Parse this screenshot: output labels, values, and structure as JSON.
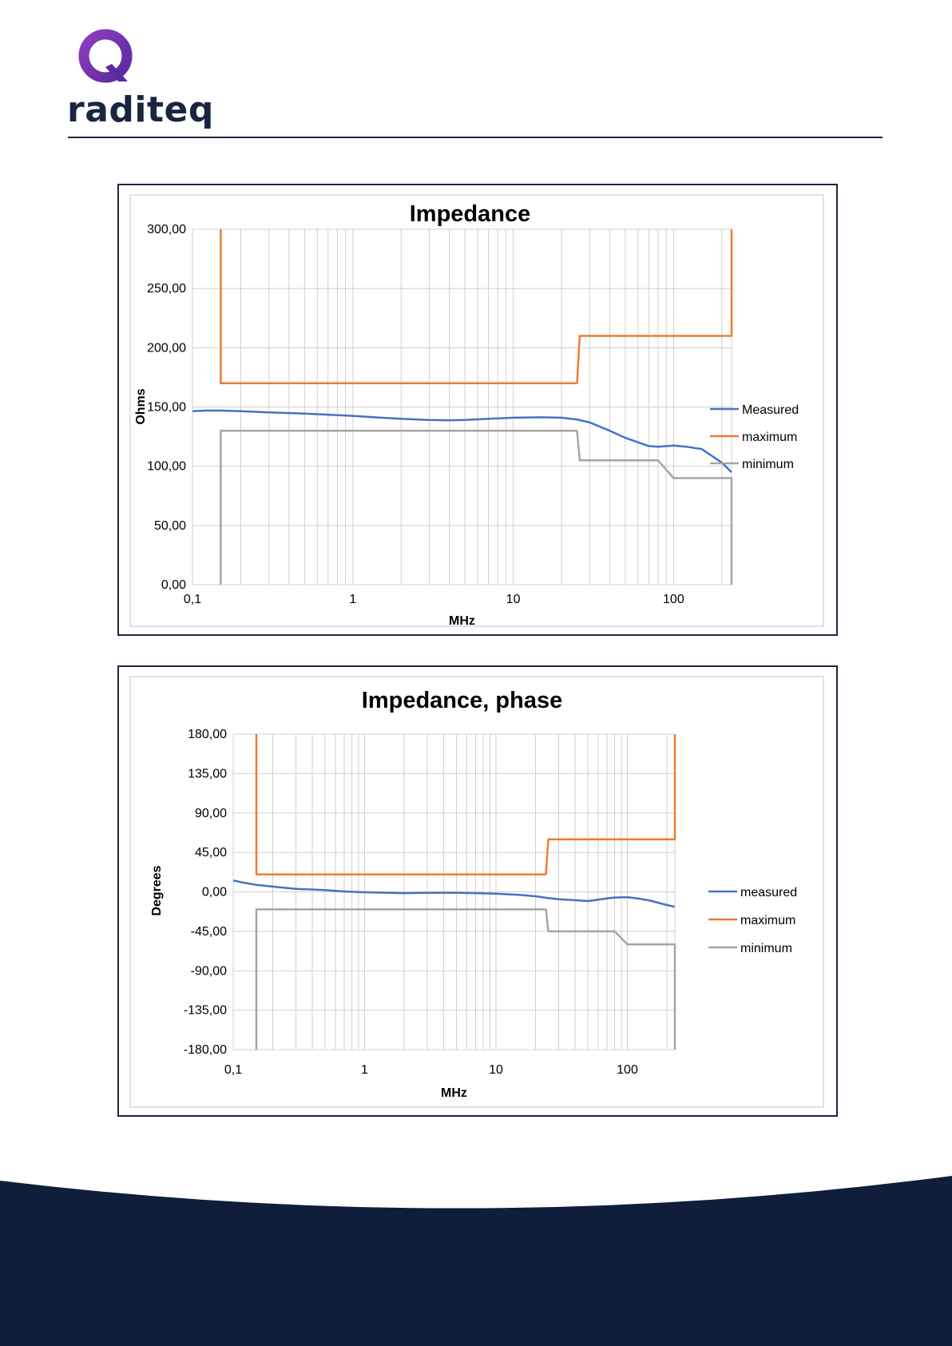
{
  "brand": {
    "logo_text": "raditeq",
    "colors": {
      "navy": "#0f1e3a",
      "logo_purple": "#6a2aa8",
      "logo_magenta": "#8a3ab9"
    }
  },
  "colors": {
    "measured": "#4472c4",
    "maximum": "#ed7d31",
    "minimum": "#a5a5a5",
    "grid": "#d0d0d0"
  },
  "chart_data": [
    {
      "type": "line",
      "title": "Impedance",
      "xlabel": "MHz",
      "ylabel": "Ohms",
      "xscale": "log",
      "xlim": [
        0.1,
        230
      ],
      "ylim": [
        0,
        300
      ],
      "x_ticks": [
        {
          "v": 0.1,
          "label": "0,1"
        },
        {
          "v": 1,
          "label": "1"
        },
        {
          "v": 10,
          "label": "10"
        },
        {
          "v": 100,
          "label": "100"
        }
      ],
      "y_ticks": [
        {
          "v": 0,
          "label": "0,00"
        },
        {
          "v": 50,
          "label": "50,00"
        },
        {
          "v": 100,
          "label": "100,00"
        },
        {
          "v": 150,
          "label": "150,00"
        },
        {
          "v": 200,
          "label": "200,00"
        },
        {
          "v": 250,
          "label": "250,00"
        },
        {
          "v": 300,
          "label": "300,00"
        }
      ],
      "grid": true,
      "legend_position": "right",
      "series": [
        {
          "name": "Measured",
          "color_key": "measured",
          "x": [
            0.1,
            0.12,
            0.15,
            0.2,
            0.3,
            0.5,
            0.7,
            1,
            1.5,
            2,
            3,
            4,
            5,
            7,
            10,
            15,
            20,
            25,
            30,
            40,
            50,
            70,
            80,
            100,
            120,
            150,
            200,
            230
          ],
          "y": [
            146.5,
            147,
            147,
            146.5,
            145.5,
            144.5,
            143.5,
            142.5,
            141,
            140,
            139,
            138.8,
            139,
            140,
            141,
            141.3,
            141,
            139.5,
            137,
            130,
            124,
            117,
            116.5,
            117.5,
            116.5,
            114.5,
            103,
            95
          ]
        },
        {
          "name": "maximum",
          "color_key": "maximum",
          "x": [
            0.15,
            0.15,
            25,
            26,
            230,
            230
          ],
          "y": [
            300,
            170,
            170,
            210,
            210,
            300
          ]
        },
        {
          "name": "minimum",
          "color_key": "minimum",
          "x": [
            0.15,
            0.15,
            25,
            26,
            80,
            100,
            230,
            230
          ],
          "y": [
            0,
            130,
            130,
            105,
            105,
            90,
            90,
            0
          ]
        }
      ]
    },
    {
      "type": "line",
      "title": "Impedance, phase",
      "xlabel": "MHz",
      "ylabel": "Degrees",
      "xscale": "log",
      "xlim": [
        0.1,
        230
      ],
      "ylim": [
        -180,
        180
      ],
      "x_ticks": [
        {
          "v": 0.1,
          "label": "0,1"
        },
        {
          "v": 1,
          "label": "1"
        },
        {
          "v": 10,
          "label": "10"
        },
        {
          "v": 100,
          "label": "100"
        }
      ],
      "y_ticks": [
        {
          "v": -180,
          "label": "-180,00"
        },
        {
          "v": -135,
          "label": "-135,00"
        },
        {
          "v": -90,
          "label": "-90,00"
        },
        {
          "v": -45,
          "label": "-45,00"
        },
        {
          "v": 0,
          "label": "0,00"
        },
        {
          "v": 45,
          "label": "45,00"
        },
        {
          "v": 90,
          "label": "90,00"
        },
        {
          "v": 135,
          "label": "135,00"
        },
        {
          "v": 180,
          "label": "180,00"
        }
      ],
      "grid": true,
      "legend_position": "right",
      "series": [
        {
          "name": "measured",
          "color_key": "measured",
          "x": [
            0.1,
            0.12,
            0.15,
            0.2,
            0.3,
            0.5,
            0.7,
            1,
            1.5,
            2,
            3,
            5,
            7,
            10,
            15,
            20,
            25,
            30,
            40,
            50,
            70,
            80,
            100,
            120,
            150,
            200,
            230
          ],
          "y": [
            13,
            10.5,
            8,
            6,
            3.5,
            2,
            0.5,
            -0.5,
            -1,
            -1.5,
            -1,
            -1,
            -1.5,
            -2,
            -3.5,
            -5,
            -7,
            -8.5,
            -9.5,
            -10.5,
            -7.5,
            -6.5,
            -6,
            -7.5,
            -10,
            -15,
            -17
          ]
        },
        {
          "name": "maximum",
          "color_key": "maximum",
          "x": [
            0.15,
            0.15,
            24,
            25,
            230,
            230
          ],
          "y": [
            180,
            20,
            20,
            60,
            60,
            180
          ]
        },
        {
          "name": "minimum",
          "color_key": "minimum",
          "x": [
            0.15,
            0.15,
            24,
            25,
            80,
            100,
            230,
            230
          ],
          "y": [
            -180,
            -20,
            -20,
            -45,
            -45,
            -60,
            -60,
            -180
          ]
        }
      ]
    }
  ]
}
